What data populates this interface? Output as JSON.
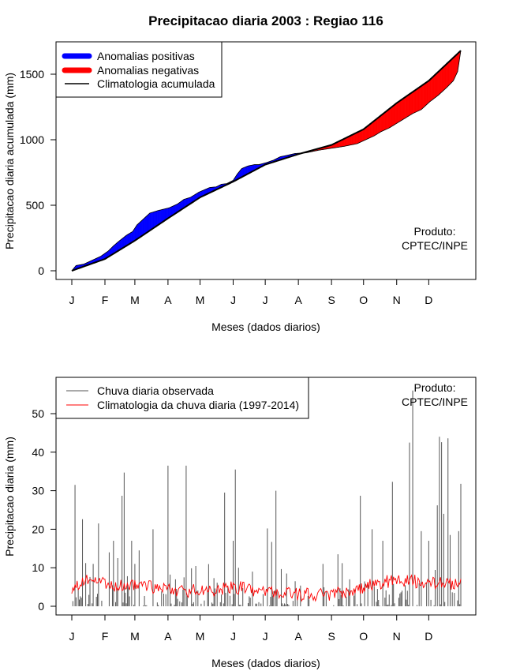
{
  "title": "Precipitacao diaria 2003 : Regiao 116",
  "credit": [
    "Produto:",
    "CPTEC/INPE"
  ],
  "colors": {
    "positive": "#0000ff",
    "negative": "#ff0000",
    "climatology": "#000000",
    "observed_rain": "#555555",
    "daily_climatology": "#ff0000"
  },
  "chart_data": [
    {
      "type": "area",
      "id": "cumulative",
      "title": "Precipitacao diaria 2003 : Regiao 116",
      "xlabel": "Meses (dados diarios)",
      "ylabel": "Precipitacao diaria acumulada (mm)",
      "months": [
        "J",
        "F",
        "M",
        "A",
        "M",
        "J",
        "J",
        "A",
        "S",
        "O",
        "N",
        "D"
      ],
      "month_start_days": [
        1,
        32,
        60,
        91,
        121,
        152,
        182,
        213,
        244,
        274,
        305,
        335
      ],
      "xlim": [
        1,
        365
      ],
      "ylim": [
        -30,
        1750
      ],
      "yticks": [
        0,
        500,
        1000,
        1500
      ],
      "legend": {
        "position": "top-left",
        "entries": [
          "Anomalias positivas",
          "Anomalias negativas",
          "Climatologia acumulada"
        ]
      },
      "climatology_knots": [
        [
          1,
          0
        ],
        [
          32,
          90
        ],
        [
          60,
          230
        ],
        [
          91,
          400
        ],
        [
          121,
          560
        ],
        [
          152,
          680
        ],
        [
          182,
          810
        ],
        [
          213,
          890
        ],
        [
          244,
          960
        ],
        [
          274,
          1080
        ],
        [
          305,
          1280
        ],
        [
          335,
          1450
        ],
        [
          365,
          1680
        ]
      ],
      "observed_knots": [
        [
          1,
          0
        ],
        [
          5,
          40
        ],
        [
          12,
          50
        ],
        [
          20,
          80
        ],
        [
          28,
          110
        ],
        [
          35,
          150
        ],
        [
          40,
          190
        ],
        [
          45,
          225
        ],
        [
          52,
          270
        ],
        [
          58,
          300
        ],
        [
          62,
          350
        ],
        [
          70,
          410
        ],
        [
          74,
          440
        ],
        [
          82,
          460
        ],
        [
          92,
          480
        ],
        [
          100,
          510
        ],
        [
          106,
          545
        ],
        [
          112,
          560
        ],
        [
          120,
          600
        ],
        [
          130,
          635
        ],
        [
          136,
          640
        ],
        [
          141,
          660
        ],
        [
          146,
          665
        ],
        [
          152,
          690
        ],
        [
          156,
          740
        ],
        [
          160,
          780
        ],
        [
          166,
          800
        ],
        [
          172,
          810
        ],
        [
          176,
          810
        ],
        [
          183,
          825
        ],
        [
          190,
          845
        ],
        [
          196,
          870
        ],
        [
          202,
          880
        ],
        [
          210,
          895
        ],
        [
          220,
          900
        ],
        [
          232,
          920
        ],
        [
          244,
          935
        ],
        [
          256,
          950
        ],
        [
          268,
          970
        ],
        [
          276,
          1000
        ],
        [
          284,
          1030
        ],
        [
          290,
          1060
        ],
        [
          298,
          1090
        ],
        [
          306,
          1130
        ],
        [
          312,
          1160
        ],
        [
          320,
          1200
        ],
        [
          328,
          1230
        ],
        [
          336,
          1290
        ],
        [
          344,
          1340
        ],
        [
          352,
          1400
        ],
        [
          358,
          1450
        ],
        [
          362,
          1520
        ],
        [
          365,
          1680
        ]
      ]
    },
    {
      "type": "bar",
      "id": "daily",
      "xlabel": "Meses (dados diarios)",
      "ylabel": "Precipitacao diaria (mm)",
      "months": [
        "J",
        "F",
        "M",
        "A",
        "M",
        "J",
        "J",
        "A",
        "S",
        "O",
        "N",
        "D"
      ],
      "month_start_days": [
        1,
        32,
        60,
        91,
        121,
        152,
        182,
        213,
        244,
        274,
        305,
        335
      ],
      "xlim": [
        1,
        365
      ],
      "ylim": [
        -2,
        59
      ],
      "yticks": [
        0,
        10,
        20,
        30,
        40,
        50
      ],
      "legend": {
        "position": "top-left",
        "entries": [
          "Chuva diaria observada",
          "Climatologia da chuva diaria (1997-2014)"
        ]
      },
      "climatology_knots": [
        [
          1,
          5
        ],
        [
          15,
          6.5
        ],
        [
          32,
          6
        ],
        [
          45,
          5.5
        ],
        [
          60,
          5.5
        ],
        [
          75,
          5
        ],
        [
          91,
          4.5
        ],
        [
          105,
          4
        ],
        [
          121,
          4
        ],
        [
          136,
          4
        ],
        [
          152,
          5
        ],
        [
          165,
          4.5
        ],
        [
          182,
          4
        ],
        [
          200,
          3.5
        ],
        [
          213,
          3
        ],
        [
          230,
          3
        ],
        [
          244,
          3
        ],
        [
          260,
          4
        ],
        [
          274,
          5
        ],
        [
          290,
          6
        ],
        [
          305,
          7
        ],
        [
          320,
          6.5
        ],
        [
          335,
          6
        ],
        [
          350,
          6
        ],
        [
          365,
          6
        ]
      ],
      "observed_peaks": [
        [
          4,
          31.5
        ],
        [
          11,
          22.6
        ],
        [
          21,
          11
        ],
        [
          26,
          21.5
        ],
        [
          36,
          14
        ],
        [
          40,
          17
        ],
        [
          44,
          12.5
        ],
        [
          48,
          28.7
        ],
        [
          50,
          34.7
        ],
        [
          57,
          17
        ],
        [
          60,
          11
        ],
        [
          64,
          14.5
        ],
        [
          77,
          20
        ],
        [
          91,
          36.5
        ],
        [
          98,
          7
        ],
        [
          108,
          36.5
        ],
        [
          144,
          29.5
        ],
        [
          152,
          17
        ],
        [
          154,
          35.5
        ],
        [
          157,
          10
        ],
        [
          170,
          9
        ],
        [
          184,
          20.2
        ],
        [
          188,
          16.7
        ],
        [
          192,
          30
        ],
        [
          202,
          8.5
        ],
        [
          210,
          6.5
        ],
        [
          236,
          11
        ],
        [
          250,
          13.5
        ],
        [
          261,
          7
        ],
        [
          271,
          28.7
        ],
        [
          282,
          20
        ],
        [
          292,
          17
        ],
        [
          301,
          32.3
        ],
        [
          317,
          42.5
        ],
        [
          320,
          56
        ],
        [
          328,
          19.5
        ],
        [
          335,
          17
        ],
        [
          343,
          26.2
        ],
        [
          345,
          44
        ],
        [
          347,
          42.6
        ],
        [
          349,
          24
        ],
        [
          353,
          43.6
        ],
        [
          355,
          18.5
        ],
        [
          363,
          19.5
        ],
        [
          365,
          31.8
        ]
      ]
    }
  ]
}
